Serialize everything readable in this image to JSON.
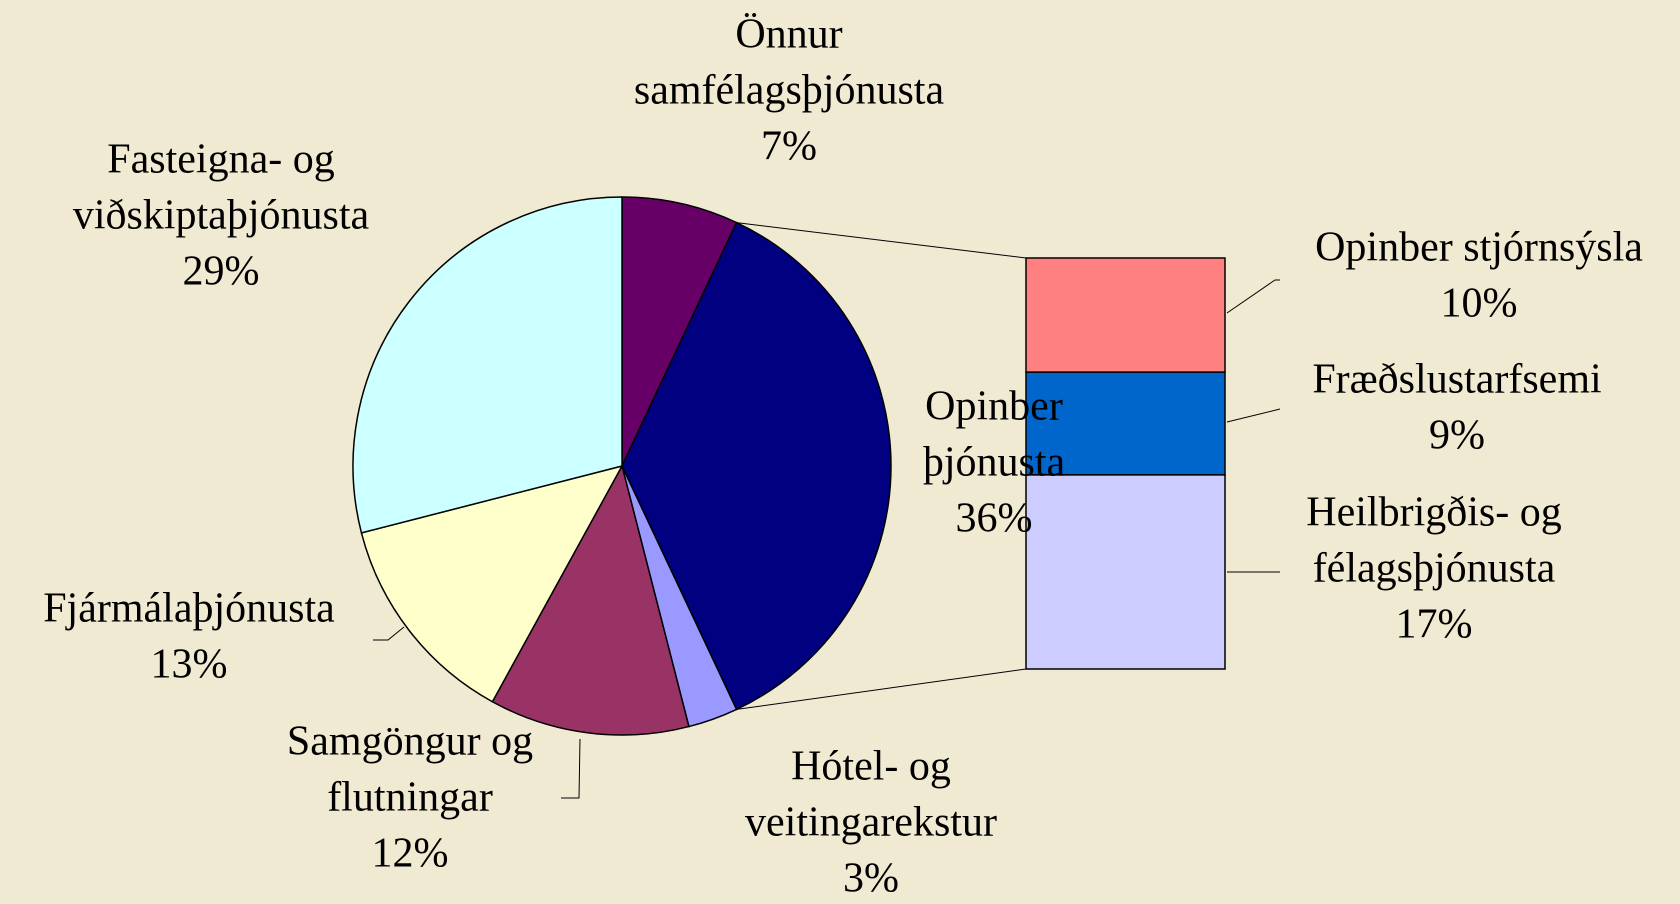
{
  "chart_data": {
    "type": "pie",
    "categories": [
      [
        "Önnur",
        "samfélagsþjónusta"
      ],
      [
        "Opinber",
        "þjónusta"
      ],
      [
        "Hótel- og",
        "veitingarekstur"
      ],
      [
        "Samgöngur og",
        "flutningar"
      ],
      [
        "Fjármálaþjónusta"
      ],
      [
        "Fasteigna- og",
        "viðskiptaþjónusta"
      ]
    ],
    "values": [
      7,
      36,
      3,
      12,
      13,
      29
    ],
    "value_labels": [
      "7%",
      "36%",
      "3%",
      "12%",
      "13%",
      "29%"
    ],
    "colors": [
      "#660066",
      "#000080",
      "#9999ff",
      "#993366",
      "#ffffcc",
      "#ccffff"
    ],
    "breakdown": {
      "type": "bar",
      "categories": [
        [
          "Opinber stjórnsýsla"
        ],
        [
          "Fræðslustarfsemi"
        ],
        [
          "Heilbrigðis- og",
          "félagsþjónusta"
        ]
      ],
      "values": [
        10,
        9,
        17
      ],
      "value_labels": [
        "10%",
        "9%",
        "17%"
      ],
      "colors": [
        "#ff8080",
        "#0066cc",
        "#ccccff"
      ]
    }
  }
}
